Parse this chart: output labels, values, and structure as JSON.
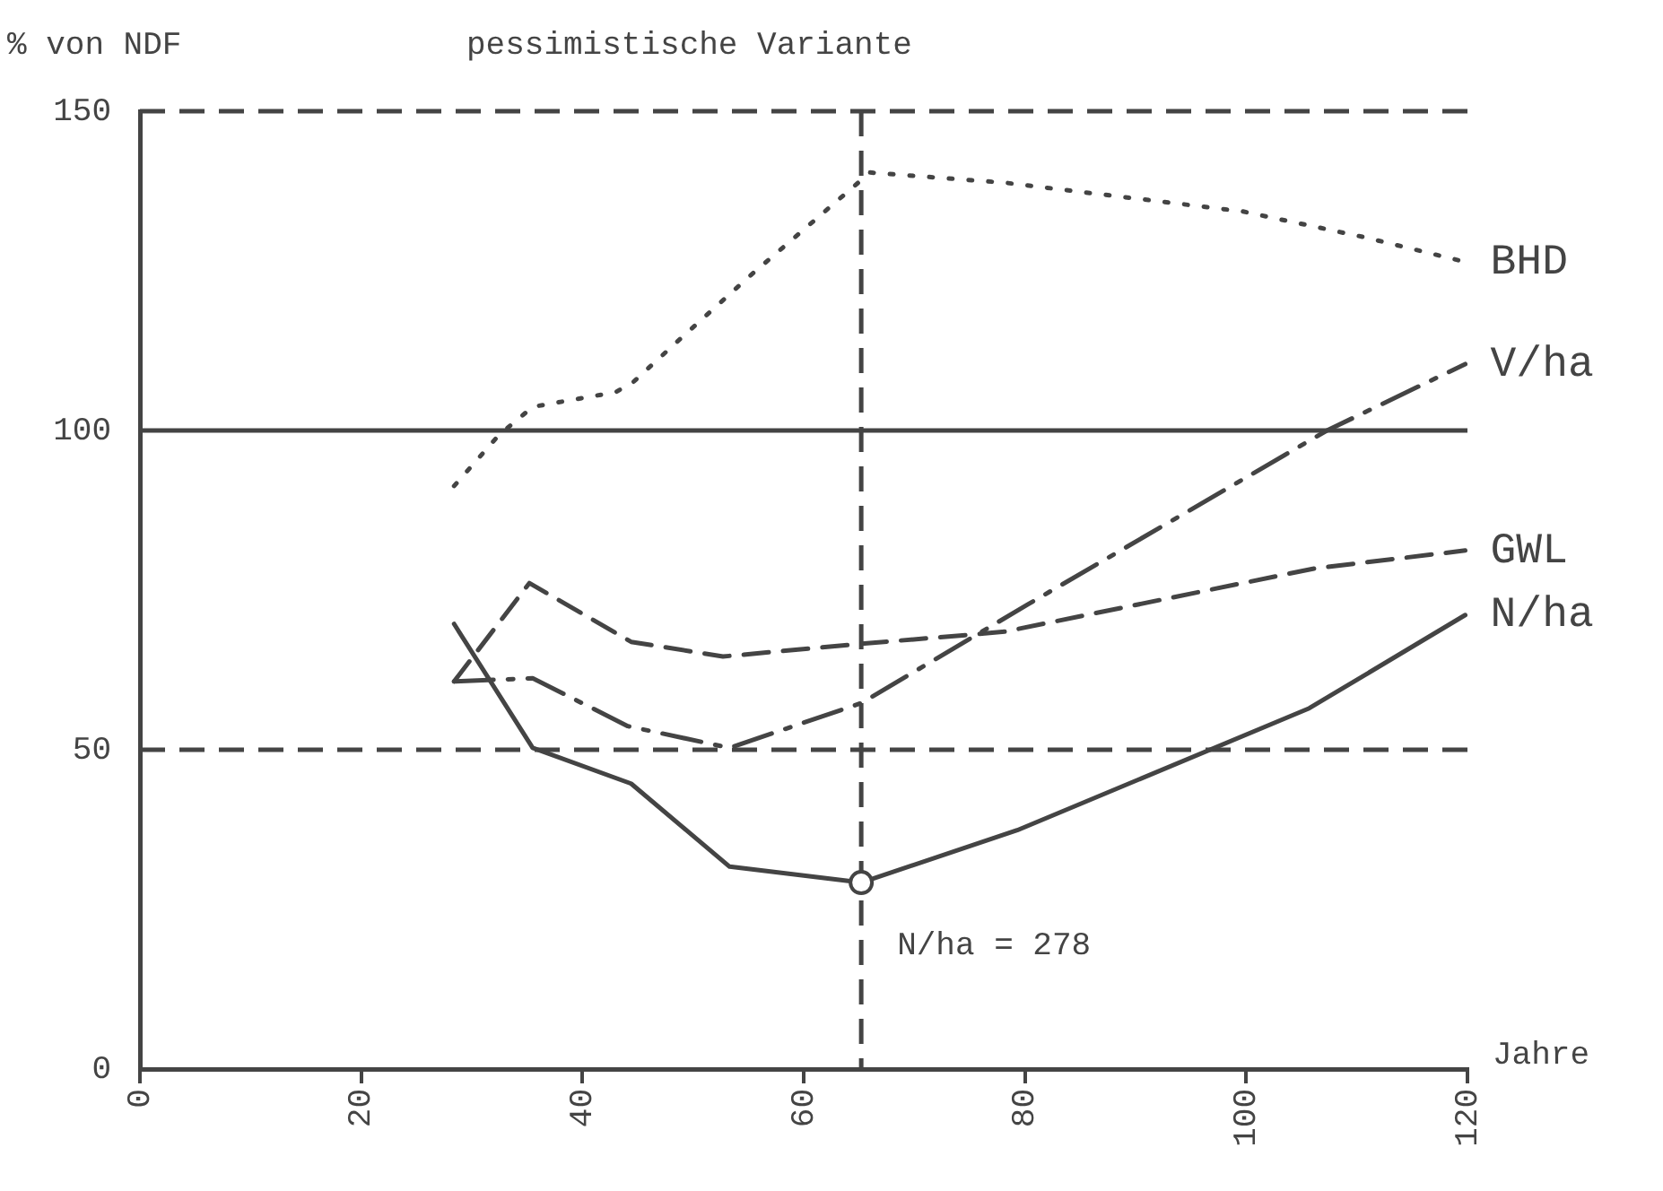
{
  "chart_data": {
    "type": "line",
    "title": "pessimistische Variante",
    "ylabel": "% von NDF",
    "xlabel": "Jahre",
    "xlim": [
      0,
      120
    ],
    "xticks": [
      0,
      20,
      40,
      60,
      80,
      100,
      120
    ],
    "ylim": [
      0,
      150
    ],
    "yticks": [
      0,
      50,
      100,
      150
    ],
    "grid": false,
    "legend": false,
    "marker": "none",
    "series": [
      {
        "name": "BHD",
        "color": "#444444",
        "line_style": "dotted",
        "x": [
          28.4,
          32.4,
          35.5,
          43,
          44.6,
          49,
          55,
          66,
          78.2,
          99.7,
          110.6,
          119.8
        ],
        "values": [
          91.3,
          99.2,
          103.7,
          106,
          107.6,
          114.6,
          124,
          140.4,
          138.8,
          134.3,
          130.3,
          126.4
        ]
      },
      {
        "name": "V/ha",
        "color": "#444444",
        "line_style": "dashdot",
        "x": [
          28.4,
          35.5,
          44.1,
          53.3,
          65.2,
          80.3,
          107.3,
          119.8
        ],
        "values": [
          60.7,
          61.2,
          53.7,
          50.3,
          57.3,
          72.8,
          100,
          110.4
        ]
      },
      {
        "name": "GWL",
        "color": "#444444",
        "line_style": "dashed",
        "x": [
          28.4,
          35.2,
          44.4,
          52.7,
          65.2,
          74.9,
          78.2,
          106.2,
          119.8
        ],
        "values": [
          60.7,
          76.1,
          66.9,
          64.6,
          66.6,
          68,
          68.5,
          78.4,
          81.2
        ]
      },
      {
        "name": "N/ha",
        "color": "#444444",
        "line_style": "solid",
        "x": [
          28.4,
          35.5,
          44.4,
          53.3,
          65.2,
          79.3,
          105.7,
          119.8
        ],
        "values": [
          69.7,
          50.3,
          44.7,
          31.7,
          29.2,
          37.4,
          56.5,
          71.1
        ]
      }
    ],
    "ref_lines": [
      {
        "axis": "y",
        "value": 150,
        "line_style": "dashed",
        "color": "#444444"
      },
      {
        "axis": "y",
        "value": 100,
        "line_style": "solid",
        "color": "#444444"
      },
      {
        "axis": "y",
        "value": 50,
        "line_style": "dashed",
        "color": "#444444"
      },
      {
        "axis": "x",
        "value": 65.2,
        "line_style": "dashed",
        "color": "#444444"
      }
    ],
    "annotations": [
      {
        "text": "N/ha = 278",
        "x": 65.2,
        "y": 29.2
      }
    ]
  }
}
